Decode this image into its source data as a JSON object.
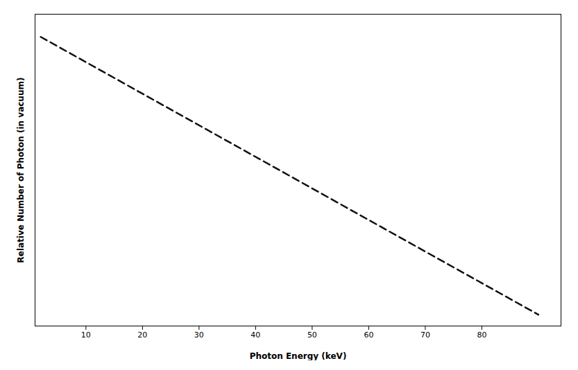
{
  "chart_data": {
    "type": "line",
    "x": [
      2,
      90
    ],
    "values": [
      1.0,
      0.02
    ],
    "xlabel": "Photon Energy (keV)",
    "ylabel": "Relative Number of Photon (in vacuum)",
    "xlim": [
      1,
      94
    ],
    "ylim": [
      -0.02,
      1.08
    ],
    "xticks": [
      10,
      20,
      30,
      40,
      50,
      60,
      70,
      80
    ],
    "tick_labels": "x",
    "grid": false,
    "color": "#111111",
    "line_style": "dashed"
  }
}
